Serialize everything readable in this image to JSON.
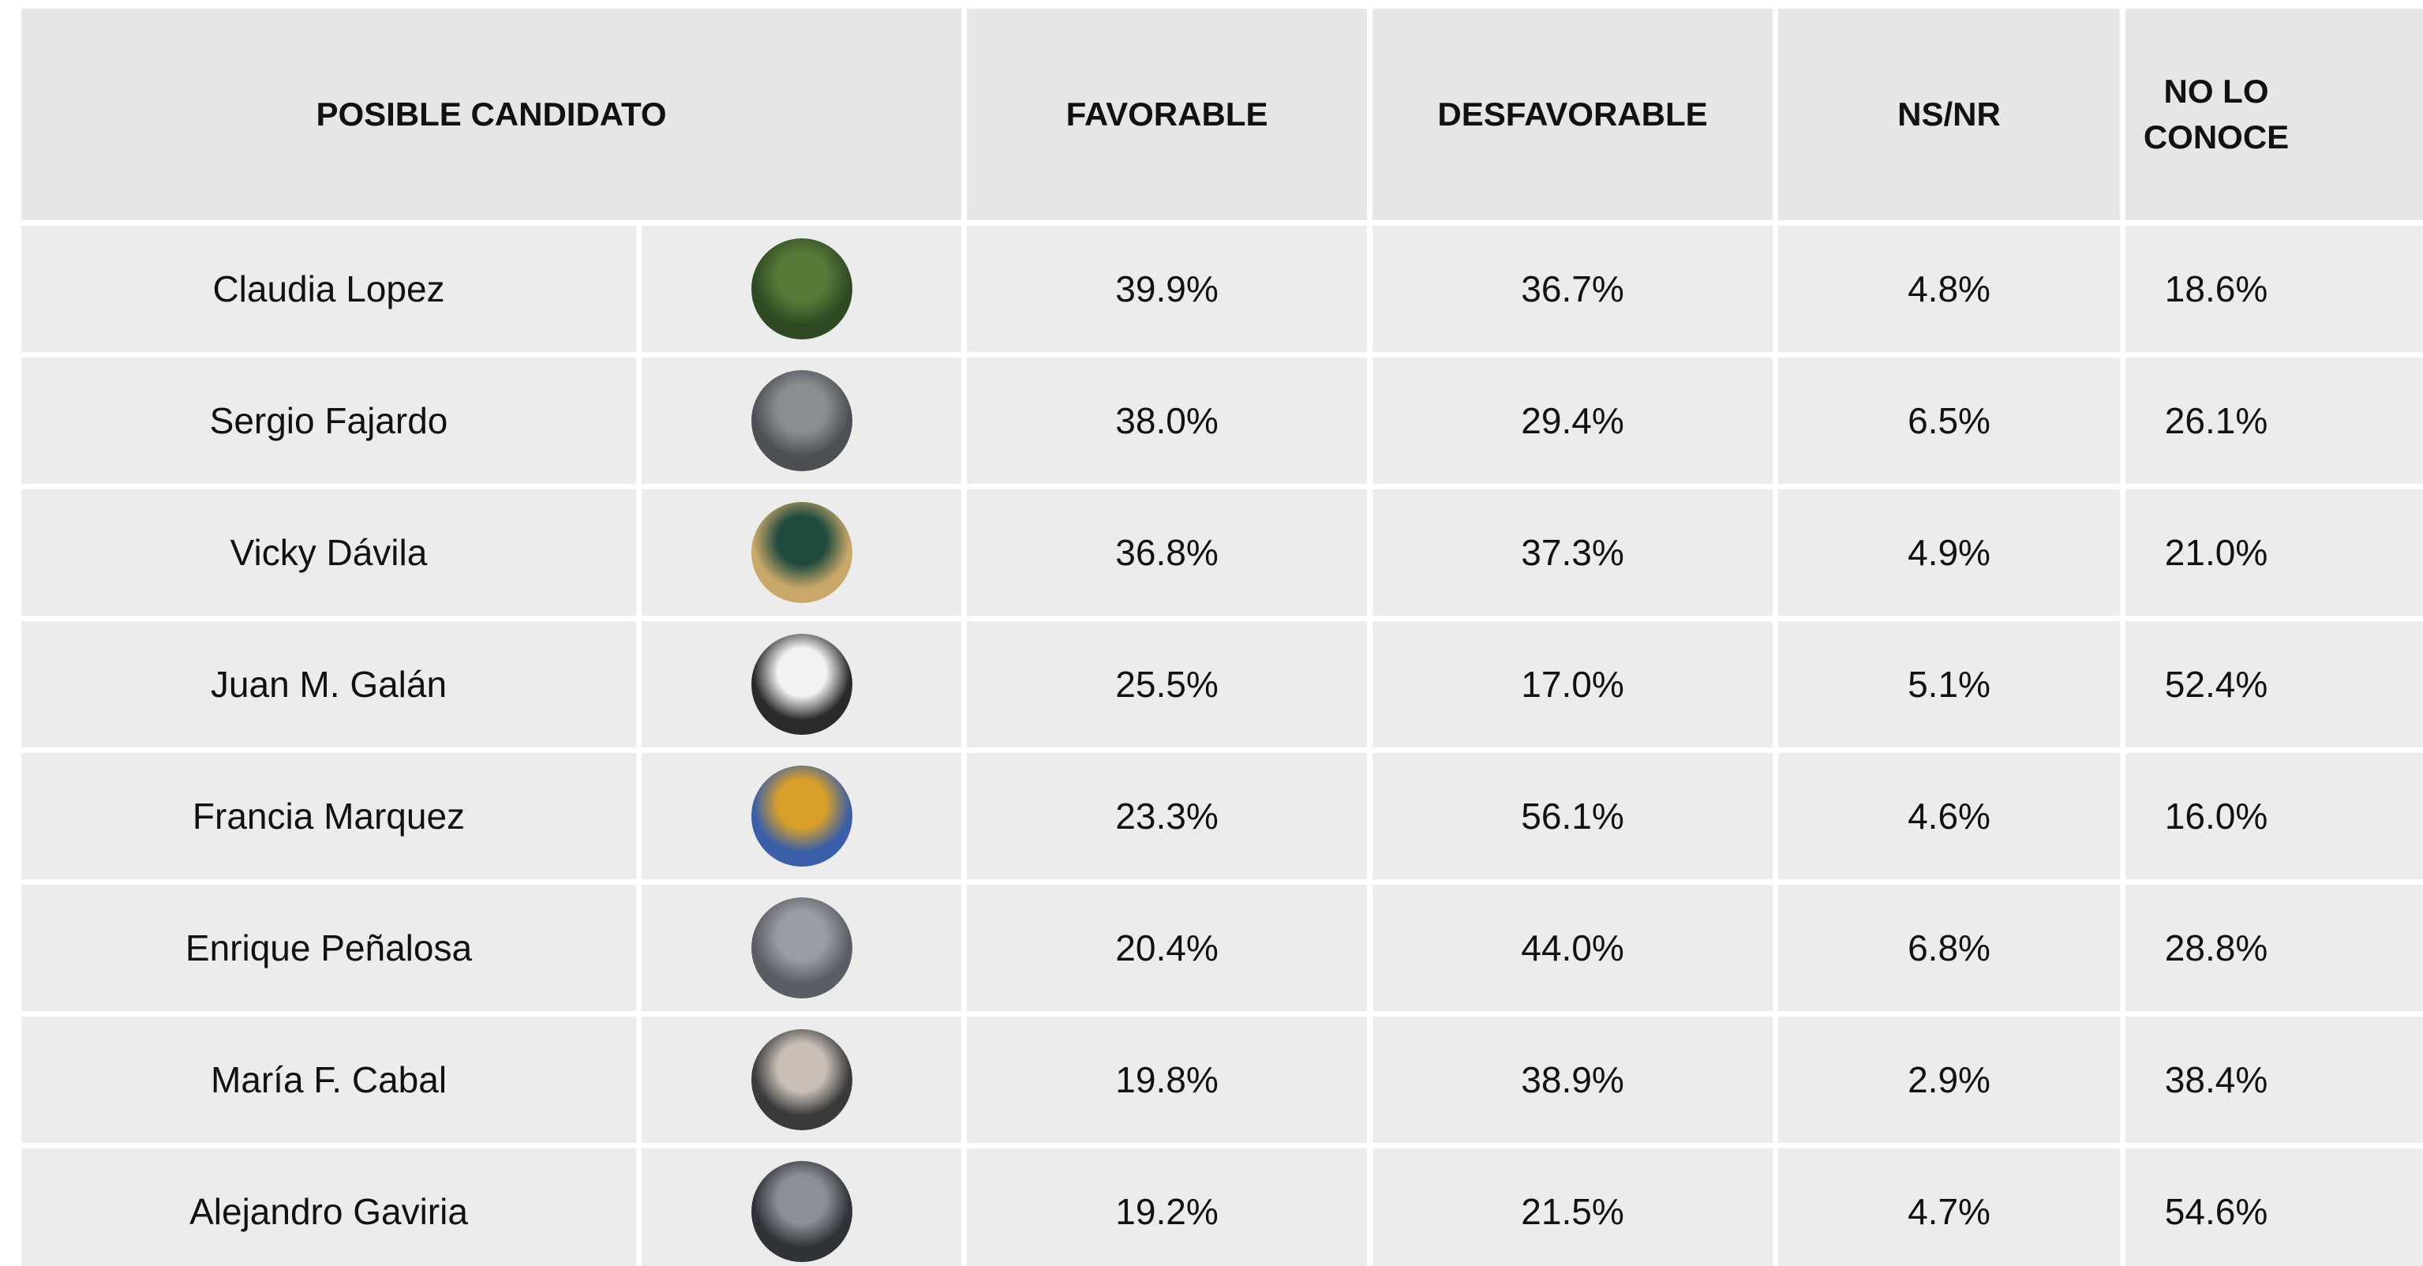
{
  "table": {
    "header": {
      "candidate": "POSIBLE CANDIDATO",
      "favorable": "FAVORABLE",
      "unfavorable": "DESFAVORABLE",
      "nsnr": "NS/NR",
      "unknown": "NO LO CONOCE"
    },
    "rows": [
      {
        "name": "Claudia Lopez",
        "favorable": "39.9%",
        "unfavorable": "36.7%",
        "nsnr": "4.8%",
        "unknown": "18.6%"
      },
      {
        "name": "Sergio Fajardo",
        "favorable": "38.0%",
        "unfavorable": "29.4%",
        "nsnr": "6.5%",
        "unknown": "26.1%"
      },
      {
        "name": "Vicky Dávila",
        "favorable": "36.8%",
        "unfavorable": "37.3%",
        "nsnr": "4.9%",
        "unknown": "21.0%"
      },
      {
        "name": "Juan M. Galán",
        "favorable": "25.5%",
        "unfavorable": "17.0%",
        "nsnr": "5.1%",
        "unknown": "52.4%"
      },
      {
        "name": "Francia Marquez",
        "favorable": "23.3%",
        "unfavorable": "56.1%",
        "nsnr": "4.6%",
        "unknown": "16.0%"
      },
      {
        "name": "Enrique Peñalosa",
        "favorable": "20.4%",
        "unfavorable": "44.0%",
        "nsnr": "6.8%",
        "unknown": "28.8%"
      },
      {
        "name": "María F. Cabal",
        "favorable": "19.8%",
        "unfavorable": "38.9%",
        "nsnr": "2.9%",
        "unknown": "38.4%"
      },
      {
        "name": "Alejandro Gaviria",
        "favorable": "19.2%",
        "unfavorable": "21.5%",
        "nsnr": "4.7%",
        "unknown": "54.6%"
      }
    ]
  }
}
